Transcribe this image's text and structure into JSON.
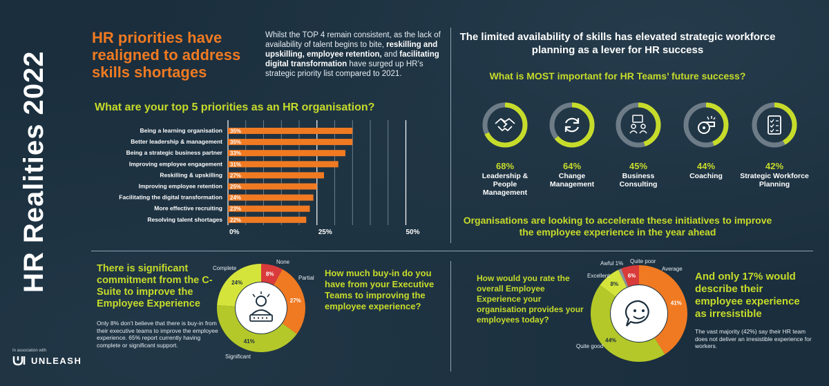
{
  "side_title": "HR Realities 2022",
  "association_label": "In association with",
  "brand": "UNLEASH",
  "headline": "HR priorities have realigned to address skills shortages",
  "intro": {
    "p1": "Whilst the TOP 4 remain consistent, as the lack of availability of talent begins to bite, ",
    "b1": "reskilling and upskilling, employee retention,",
    "p2": " and ",
    "b2": "facilitating digital transformation",
    "p3": " have surged up HR’s strategic priority list compared to 2021."
  },
  "priorities_question": "What are your top 5 priorities as an HR organisation?",
  "right_headline": "The limited availability of skills has elevated strategic workforce planning as a lever for HR success",
  "success_question": "What is MOST important for HR Teams’ future success?",
  "accelerate_text": "Organisations are looking to accelerate these initiatives to improve the employee experience in the year ahead",
  "csuite": {
    "headline": "There is significant commitment from the C-Suite to improve the Employee Experience",
    "body": "Only 8% don’t believe that there is buy-in from their executive teams to improve the employee experience. 65% report currently having complete or significant support.",
    "question": "How much buy-in do you have from your Executive Teams to improving the employee experience?"
  },
  "experience": {
    "question": "How would you rate the overall Employee Experience your organisation provides your employees today?",
    "headline": "And only 17% would describe their employee experience as irresistible",
    "body": "The vast majority (42%) say their HR team does not deliver an irresistible experience for workers."
  },
  "colors": {
    "orange": "#f07a22",
    "lime": "#c7dc2a",
    "red": "#d93a3a",
    "grey": "#8a9299",
    "bg": "#1a2e3d"
  },
  "chart_data": [
    {
      "type": "bar",
      "orientation": "horizontal",
      "title": "What are your top 5 priorities as an HR organisation?",
      "categories": [
        "Being a learning organisation",
        "Better leadership & management",
        "Being a strategic business partner",
        "Improving employee engagement",
        "Reskilling & upskilling",
        "Improving employee retention",
        "Facilitating the digital transformation",
        "More effective recruiting",
        "Resolving talent shortages"
      ],
      "values": [
        35,
        35,
        33,
        31,
        27,
        25,
        24,
        23,
        22
      ],
      "value_labels": [
        "35%",
        "35%",
        "33%",
        "31%",
        "27%",
        "25%",
        "24%",
        "23%",
        "22%"
      ],
      "xticks": [
        "0%",
        "25%",
        "50%"
      ],
      "xlim": [
        0,
        50
      ],
      "color": "#f07a22"
    },
    {
      "type": "bar",
      "variant": "progress-rings",
      "title": "What is MOST important for HR Teams’ future success?",
      "items": [
        {
          "pct": "68%",
          "value": 68,
          "label": "Leadership & People Management",
          "icon": "handshake-icon"
        },
        {
          "pct": "64%",
          "value": 64,
          "label": "Change Management",
          "icon": "refresh-icon"
        },
        {
          "pct": "45%",
          "value": 45,
          "label": "Business Consulting",
          "icon": "consulting-icon"
        },
        {
          "pct": "44%",
          "value": 44,
          "label": "Coaching",
          "icon": "whistle-icon"
        },
        {
          "pct": "42%",
          "value": 42,
          "label": "Strategic Workforce Planning",
          "icon": "checklist-icon"
        }
      ],
      "ring_color": "#c7dc2a",
      "track_color": "#6e7c88"
    },
    {
      "type": "pie",
      "variant": "donut",
      "title": "How much buy-in do you have from your Executive Teams to improving the employee experience?",
      "slices": [
        {
          "name": "None",
          "value": 8,
          "label": "8%",
          "color": "#d93a3a"
        },
        {
          "name": "Partial",
          "value": 27,
          "label": "27%",
          "color": "#f07a22"
        },
        {
          "name": "Significant",
          "value": 41,
          "label": "41%",
          "color": "#b4c829"
        },
        {
          "name": "Complete",
          "value": 24,
          "label": "24%",
          "color": "#d5e43a"
        }
      ],
      "icon": "rating-person-icon"
    },
    {
      "type": "pie",
      "variant": "donut",
      "title": "How would you rate the overall Employee Experience your organisation provides your employees today?",
      "slices": [
        {
          "name": "Average",
          "value": 41,
          "label": "41%",
          "color": "#f07a22"
        },
        {
          "name": "Quite good",
          "value": 44,
          "label": "44%",
          "color": "#b4c829"
        },
        {
          "name": "Excellent",
          "value": 8,
          "label": "8%",
          "color": "#d5e43a"
        },
        {
          "name": "Awful",
          "value": 1,
          "label": "1%",
          "color": "#8a9299"
        },
        {
          "name": "Quite poor",
          "value": 6,
          "label": "6%",
          "color": "#d93a3a"
        }
      ],
      "inline_labels": {
        "Average": "41%",
        "Quite good": "44%",
        "Excellent": "8%",
        "Quite poor": "6%"
      },
      "icon": "smiley-chat-icon"
    }
  ]
}
